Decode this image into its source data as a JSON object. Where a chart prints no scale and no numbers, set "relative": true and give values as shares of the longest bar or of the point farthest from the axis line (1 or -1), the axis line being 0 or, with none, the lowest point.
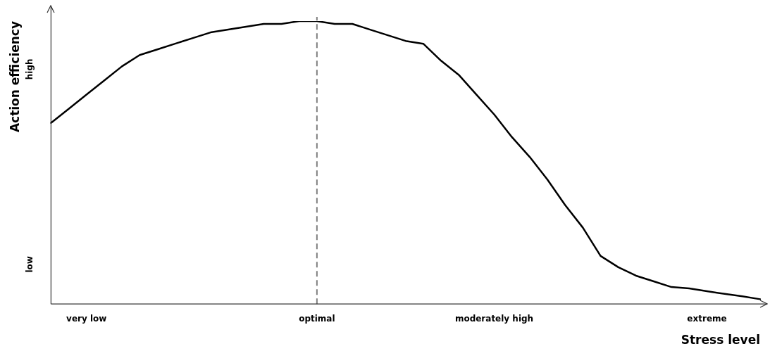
{
  "chart_data": {
    "type": "line",
    "relative": true,
    "xlabel": "Stress level",
    "ylabel": "Action efficiency",
    "categories": [
      null,
      null,
      "very low",
      null,
      null,
      null,
      null,
      null,
      null,
      null,
      null,
      null,
      null,
      null,
      null,
      "optimal",
      null,
      null,
      null,
      null,
      null,
      null,
      null,
      null,
      null,
      "moderately high",
      null,
      null,
      null,
      null,
      null,
      null,
      null,
      null,
      null,
      null,
      null,
      "extreme",
      null,
      null,
      null
    ],
    "series": [
      {
        "color": "#000000",
        "values": [
          0.64,
          0.69,
          0.74,
          0.79,
          0.84,
          0.88,
          0.9,
          0.92,
          0.94,
          0.96,
          0.97,
          0.98,
          0.99,
          0.99,
          1,
          1,
          0.99,
          0.99,
          0.97,
          0.95,
          0.93,
          0.92,
          0.86,
          0.81,
          0.74,
          0.67,
          0.59,
          0.52,
          0.44,
          0.35,
          0.27,
          0.17,
          0.13,
          0.1,
          0.08,
          0.06,
          0.055,
          0.045,
          0.036,
          0.027,
          0.017
        ]
      }
    ],
    "ref_lines": [
      {
        "axis": "x",
        "value": "optimal",
        "color": "#808080",
        "line_style": "dashed"
      }
    ],
    "annotations": [
      "low",
      "high"
    ],
    "grid": false,
    "legend": false,
    "marker": "none",
    "line_style": "solid"
  }
}
